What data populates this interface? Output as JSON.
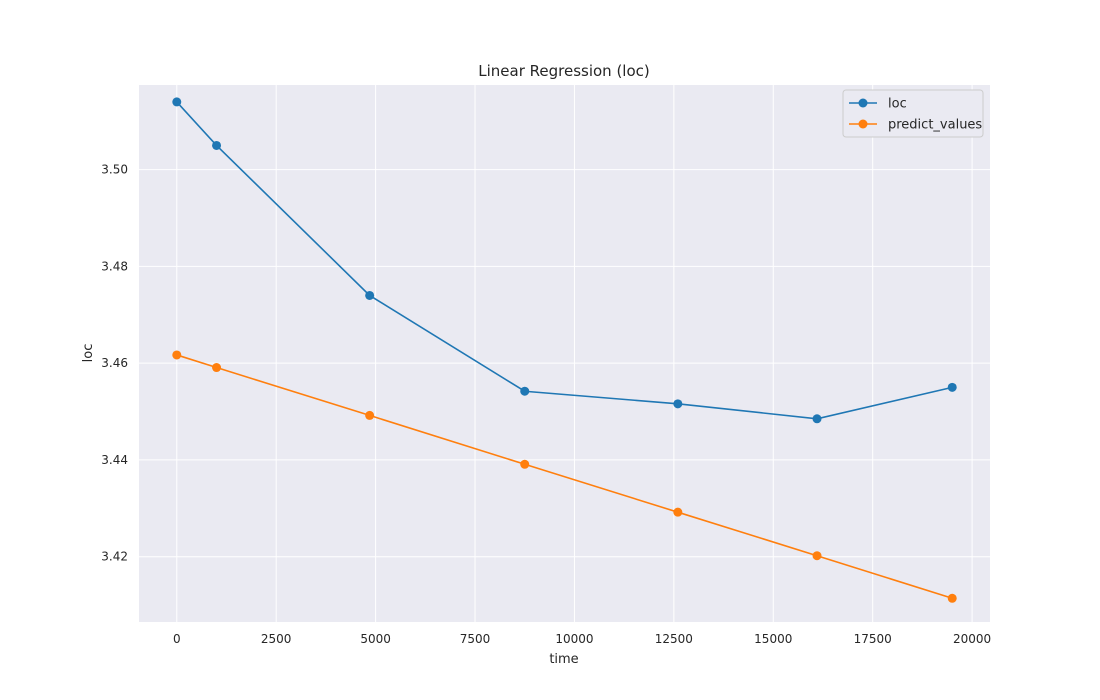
{
  "chart_data": {
    "type": "line",
    "title": "Linear Regression (loc)",
    "xlabel": "time",
    "ylabel": "loc",
    "xlim": [
      -950,
      20450
    ],
    "ylim": [
      3.4065,
      3.5175
    ],
    "xticks": [
      0,
      2500,
      5000,
      7500,
      10000,
      12500,
      15000,
      17500,
      20000
    ],
    "yticks": [
      3.42,
      3.44,
      3.46,
      3.48,
      3.5
    ],
    "ytick_labels": [
      "3.42",
      "3.44",
      "3.46",
      "3.48",
      "3.50"
    ],
    "grid": true,
    "legend_position": "top-right",
    "x": [
      0,
      1000,
      4850,
      8750,
      12600,
      16100,
      19500
    ],
    "series": [
      {
        "name": "loc",
        "color": "#1f77b4",
        "marker": "circle",
        "values": [
          3.514,
          3.505,
          3.474,
          3.4542,
          3.4516,
          3.4485,
          3.455
        ]
      },
      {
        "name": "predict_values",
        "color": "#ff7f0e",
        "marker": "circle",
        "values": [
          3.4617,
          3.4591,
          3.4492,
          3.4391,
          3.4292,
          3.4202,
          3.4114
        ]
      }
    ]
  }
}
